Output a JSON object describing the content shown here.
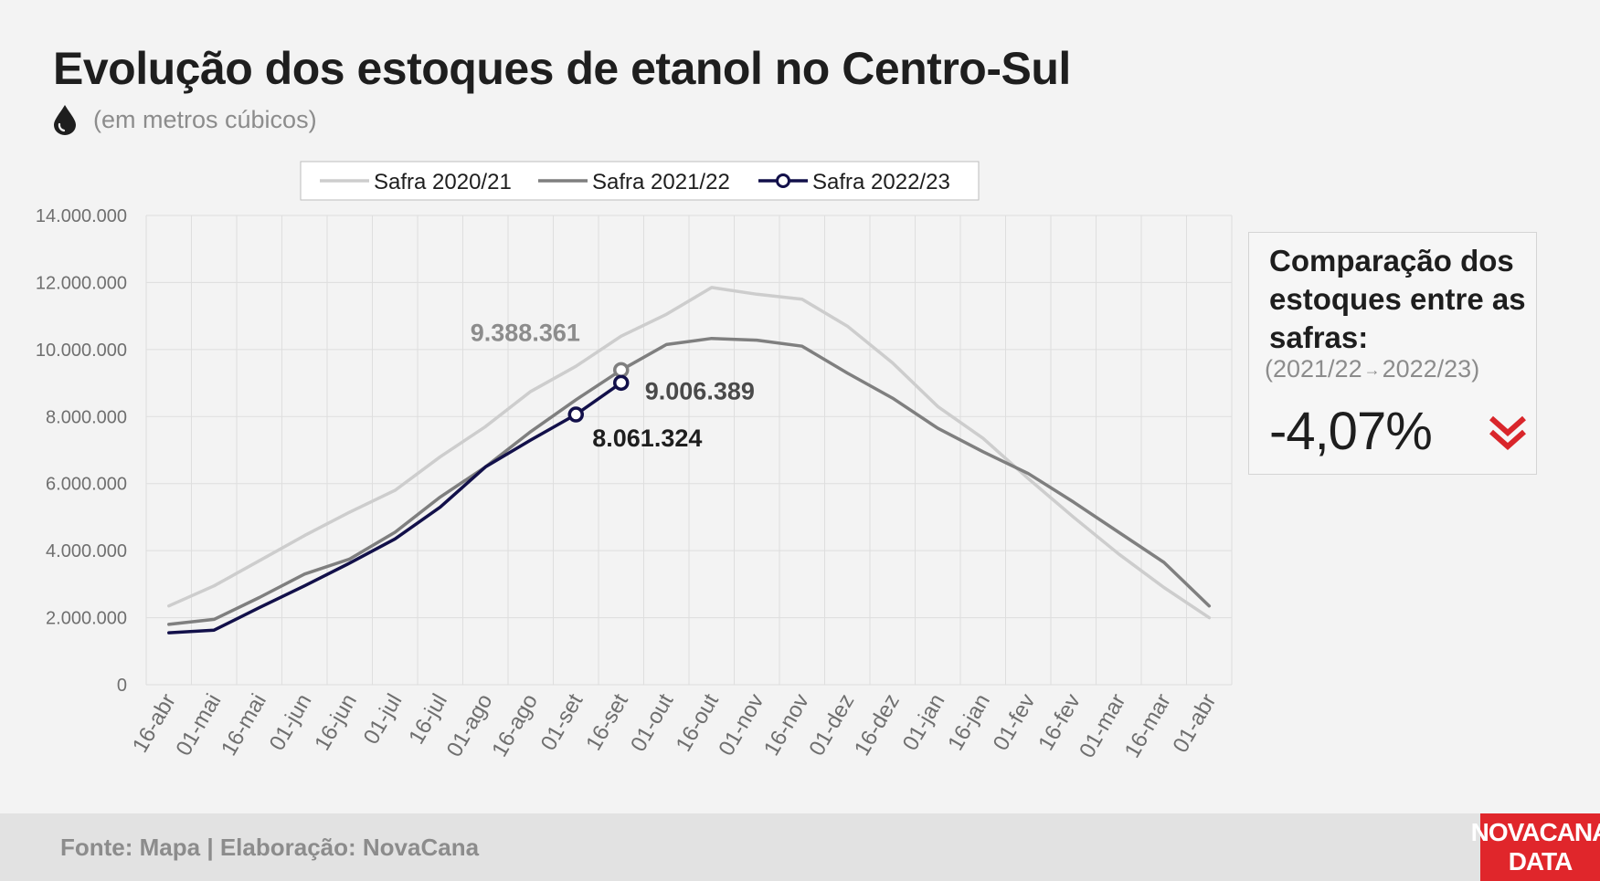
{
  "title": "Evolução dos estoques de etanol no Centro-Sul",
  "subtitle": "(em metros cúbicos)",
  "subtitle_icon": "drop-icon",
  "source": "Fonte: Mapa | Elaboração: NovaCana",
  "brand": {
    "line1": "NOVACANA",
    "line2": "DATA",
    "color": "#e0262b"
  },
  "comparison": {
    "title": "Comparação dos estoques entre as safras:",
    "period_from": "(2021/22",
    "period_arrow": "→",
    "period_to": "2022/23)",
    "value": "-4,07%",
    "icon": "double-chevron-down-icon",
    "icon_color": "#d9262b"
  },
  "chart_data": {
    "type": "line",
    "categories": [
      "16-abr",
      "01-mai",
      "16-mai",
      "01-jun",
      "16-jun",
      "01-jul",
      "16-jul",
      "01-ago",
      "16-ago",
      "01-set",
      "16-set",
      "01-out",
      "16-out",
      "01-nov",
      "16-nov",
      "01-dez",
      "16-dez",
      "01-jan",
      "16-jan",
      "01-fev",
      "16-fev",
      "01-mar",
      "16-mar",
      "01-abr"
    ],
    "ylim": [
      0,
      14000000
    ],
    "yticks": [
      0,
      2000000,
      4000000,
      6000000,
      8000000,
      10000000,
      12000000,
      14000000
    ],
    "ytick_labels": [
      "0",
      "2.000.000",
      "4.000.000",
      "6.000.000",
      "8.000.000",
      "10.000.000",
      "12.000.000",
      "14.000.000"
    ],
    "grid": true,
    "legend_position": "top",
    "series": [
      {
        "name": "Safra 2020/21",
        "color": "#cdcdcd",
        "values": [
          2350000,
          2950000,
          3700000,
          4450000,
          5150000,
          5800000,
          6800000,
          7700000,
          8750000,
          9500000,
          10400000,
          11050000,
          11850000,
          11650000,
          11500000,
          10700000,
          9600000,
          8300000,
          7350000,
          6150000,
          5000000,
          3900000,
          2900000,
          2000000
        ]
      },
      {
        "name": "Safra 2021/22",
        "color": "#7f7f7f",
        "values": [
          1800000,
          1950000,
          2600000,
          3300000,
          3750000,
          4550000,
          5600000,
          6500000,
          7550000,
          8500000,
          9388361,
          10150000,
          10330000,
          10280000,
          10100000,
          9300000,
          8550000,
          7650000,
          6950000,
          6300000,
          5450000,
          4550000,
          3650000,
          2350000
        ]
      },
      {
        "name": "Safra 2022/23",
        "color": "#12104a",
        "values": [
          1550000,
          1630000,
          2300000,
          2950000,
          3630000,
          4350000,
          5300000,
          6500000,
          7300000,
          8061324,
          9006389,
          null,
          null,
          null,
          null,
          null,
          null,
          null,
          null,
          null,
          null,
          null,
          null,
          null
        ]
      }
    ],
    "annotations": [
      {
        "text": "9.388.361",
        "series": 1,
        "index": 10,
        "color": "#8c8c8c"
      },
      {
        "text": "9.006.389",
        "series": 2,
        "index": 10,
        "color": "#4a4a4a"
      },
      {
        "text": "8.061.324",
        "series": 2,
        "index": 9,
        "color": "#1e1e1e"
      }
    ]
  }
}
